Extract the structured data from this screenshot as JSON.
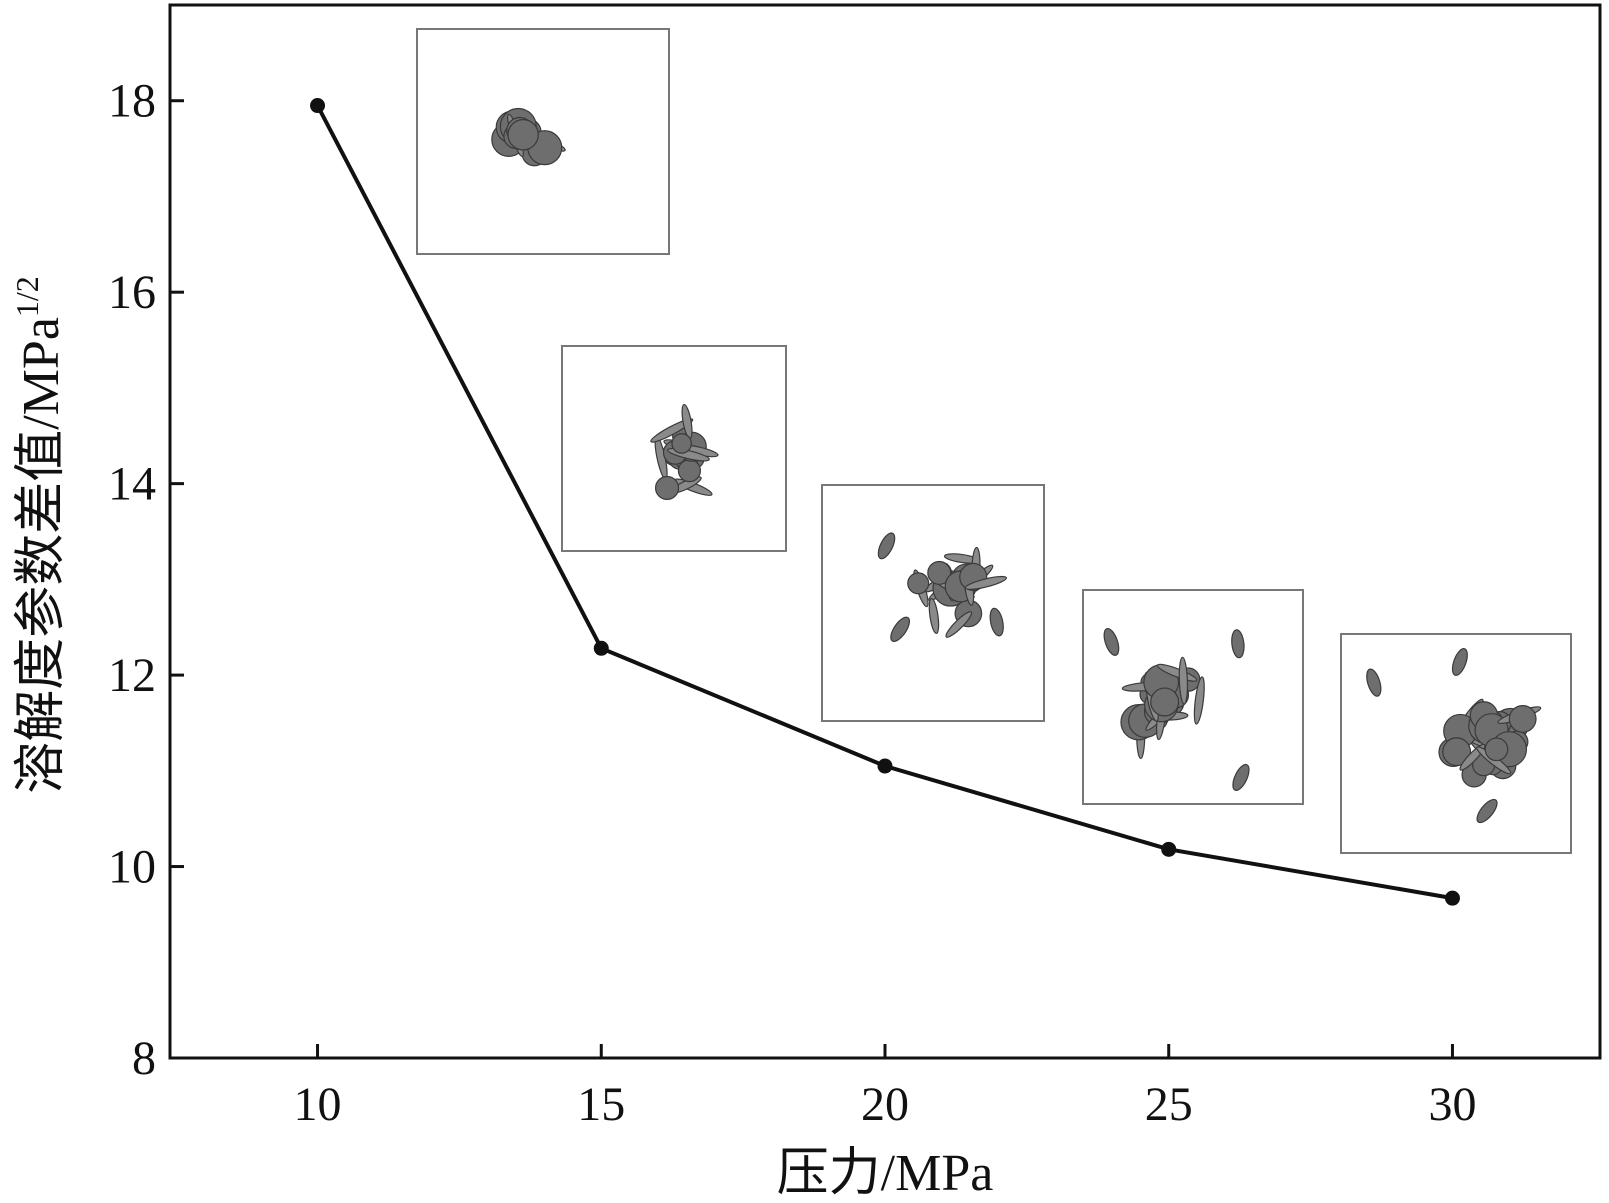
{
  "chart_data": {
    "type": "line",
    "title": "",
    "xlabel": "压力/MPa",
    "ylabel": "溶解度参数差值/MPa",
    "ylabel_superscript": "1/2",
    "x": [
      10,
      15,
      20,
      25,
      30
    ],
    "series": [
      {
        "values": [
          17.95,
          12.28,
          11.05,
          10.18,
          9.67
        ]
      }
    ],
    "xlim": [
      7.4,
      32.6
    ],
    "ylim": [
      8,
      19
    ],
    "xticks": [
      10,
      15,
      20,
      25,
      30
    ],
    "yticks": [
      8,
      10,
      12,
      14,
      16,
      18
    ],
    "grid": false,
    "insets": [
      {
        "pressure": 10,
        "content": "molecular aggregate snapshot"
      },
      {
        "pressure": 15,
        "content": "molecular aggregate snapshot"
      },
      {
        "pressure": 20,
        "content": "molecular aggregate snapshot"
      },
      {
        "pressure": 25,
        "content": "molecular aggregate snapshot"
      },
      {
        "pressure": 30,
        "content": "molecular aggregate snapshot"
      }
    ]
  }
}
